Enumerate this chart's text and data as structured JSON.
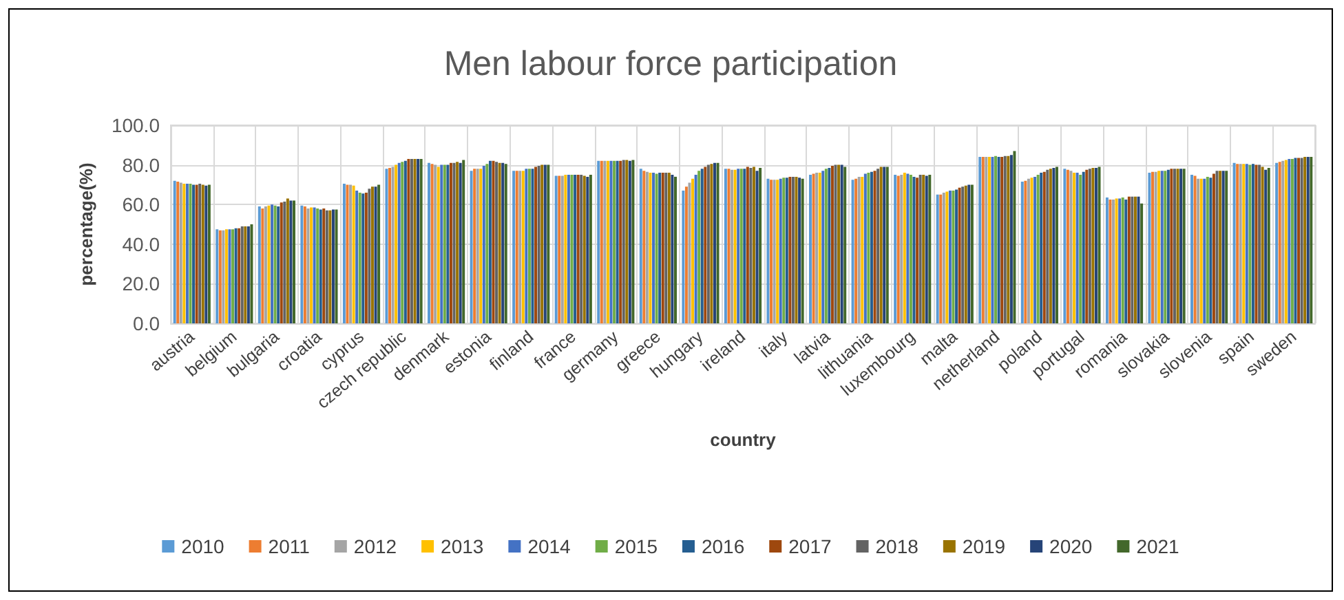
{
  "chart_data": {
    "type": "bar",
    "title": "Men labour force participation",
    "xlabel": "country",
    "ylabel": "percentage(%)",
    "categories": [
      "austria",
      "belgium",
      "bulgaria",
      "croatia",
      "cyprus",
      "czech republic",
      "denmark",
      "estonia",
      "finland",
      "france",
      "germany",
      "greece",
      "hungary",
      "ireland",
      "italy",
      "latvia",
      "lithuania",
      "luxembourg",
      "malta",
      "netherland",
      "poland",
      "portugal",
      "romania",
      "slovakia",
      "slovenia",
      "spain",
      "sweden"
    ],
    "ylim": [
      0,
      100
    ],
    "yticks": [
      {
        "value": 0,
        "label": "0.0"
      },
      {
        "value": 20,
        "label": "20.0"
      },
      {
        "value": 40,
        "label": "40.0"
      },
      {
        "value": 60,
        "label": "60.0"
      },
      {
        "value": 80,
        "label": "80.0"
      },
      {
        "value": 100,
        "label": "100.0"
      }
    ],
    "grid": true,
    "legend": "bottom",
    "series": [
      {
        "name": "2010",
        "color": "#5b9bd5",
        "values": [
          72,
          47.5,
          59,
          59.5,
          70.5,
          78,
          81,
          77,
          77,
          74.5,
          82,
          78,
          67,
          78,
          73,
          75,
          72.5,
          75,
          65,
          84,
          71.5,
          78,
          63.5,
          76,
          75,
          81,
          81
        ]
      },
      {
        "name": "2011",
        "color": "#ed7d31",
        "values": [
          71.5,
          47,
          58,
          59,
          70,
          78.5,
          80.5,
          78,
          77,
          74.5,
          82,
          77,
          69,
          78,
          72.5,
          75.5,
          73,
          74.5,
          65,
          84,
          72,
          77.5,
          62.5,
          76.5,
          74.5,
          80.5,
          81.5
        ]
      },
      {
        "name": "2012",
        "color": "#a5a5a5",
        "values": [
          71,
          47,
          59,
          58,
          70,
          79,
          80,
          78,
          77,
          74.5,
          82,
          76.5,
          71,
          77.5,
          72.5,
          76,
          74,
          75,
          66,
          84,
          73,
          77,
          62.5,
          76.5,
          73,
          80.5,
          82
        ]
      },
      {
        "name": "2013",
        "color": "#ffc000",
        "values": [
          70.5,
          47.5,
          59.5,
          58.5,
          69.5,
          80,
          79,
          78,
          77,
          75,
          82,
          76,
          73,
          77.5,
          72.5,
          76,
          74,
          76,
          66.5,
          84,
          73.5,
          76,
          63,
          77,
          73,
          80.5,
          82.5
        ]
      },
      {
        "name": "2014",
        "color": "#4472c4",
        "values": [
          70.5,
          47.5,
          60,
          58.5,
          67,
          81,
          80,
          79.5,
          78,
          75,
          82,
          76,
          75,
          78,
          73,
          77,
          75.5,
          75.5,
          67,
          84,
          74,
          76,
          63,
          77,
          73,
          80.5,
          83
        ]
      },
      {
        "name": "2015",
        "color": "#70ad47",
        "values": [
          70.5,
          47.5,
          59.5,
          58,
          66,
          81.5,
          80,
          80.5,
          78,
          75,
          82,
          75.5,
          77,
          78,
          73.5,
          78,
          76,
          75,
          67,
          84.5,
          75,
          75,
          63.5,
          77,
          74,
          80,
          83
        ]
      },
      {
        "name": "2016",
        "color": "#255e91",
        "values": [
          70,
          48,
          59,
          57.5,
          65.5,
          82,
          80,
          82,
          78,
          75,
          82,
          76,
          78,
          78,
          73.5,
          78.5,
          76.5,
          74,
          67.5,
          84,
          76,
          76.5,
          62.5,
          77.5,
          73.5,
          80.5,
          83.5
        ]
      },
      {
        "name": "2017",
        "color": "#9e480e",
        "values": [
          70,
          48,
          61,
          58,
          66,
          83,
          81,
          82,
          79,
          75,
          82,
          76,
          79,
          79,
          74,
          79.5,
          77,
          73.5,
          68.5,
          84,
          76.5,
          77.5,
          64,
          78,
          75.5,
          80,
          83.5
        ]
      },
      {
        "name": "2018",
        "color": "#636363",
        "values": [
          70.5,
          49,
          61.5,
          57,
          68,
          83,
          81,
          81.5,
          79.5,
          75,
          82.5,
          76,
          80,
          78.5,
          74,
          80,
          78,
          75,
          69,
          84.5,
          77.5,
          78,
          64,
          78,
          77,
          80,
          83.5
        ]
      },
      {
        "name": "2019",
        "color": "#997300",
        "values": [
          70,
          49,
          63,
          57,
          69,
          83,
          81.5,
          81,
          80,
          74.5,
          82.5,
          76,
          80.5,
          79,
          74,
          80,
          79,
          75,
          69.5,
          84.5,
          78,
          78.5,
          64,
          78,
          77,
          79,
          84
        ]
      },
      {
        "name": "2020",
        "color": "#264478",
        "values": [
          69.5,
          49,
          62,
          57.5,
          69,
          83,
          81,
          81,
          80,
          74,
          82,
          75,
          81,
          77,
          73.5,
          80,
          79,
          74.5,
          70,
          85,
          78.5,
          78.5,
          64,
          78,
          77,
          77.5,
          84
        ]
      },
      {
        "name": "2021",
        "color": "#43682b",
        "values": [
          70,
          50,
          62,
          57.5,
          70,
          83,
          82.5,
          80.5,
          80,
          75,
          82.5,
          74,
          81,
          78.5,
          73,
          79,
          79,
          75,
          70,
          87,
          79,
          79,
          60.5,
          78,
          77,
          78.5,
          84
        ]
      }
    ]
  }
}
